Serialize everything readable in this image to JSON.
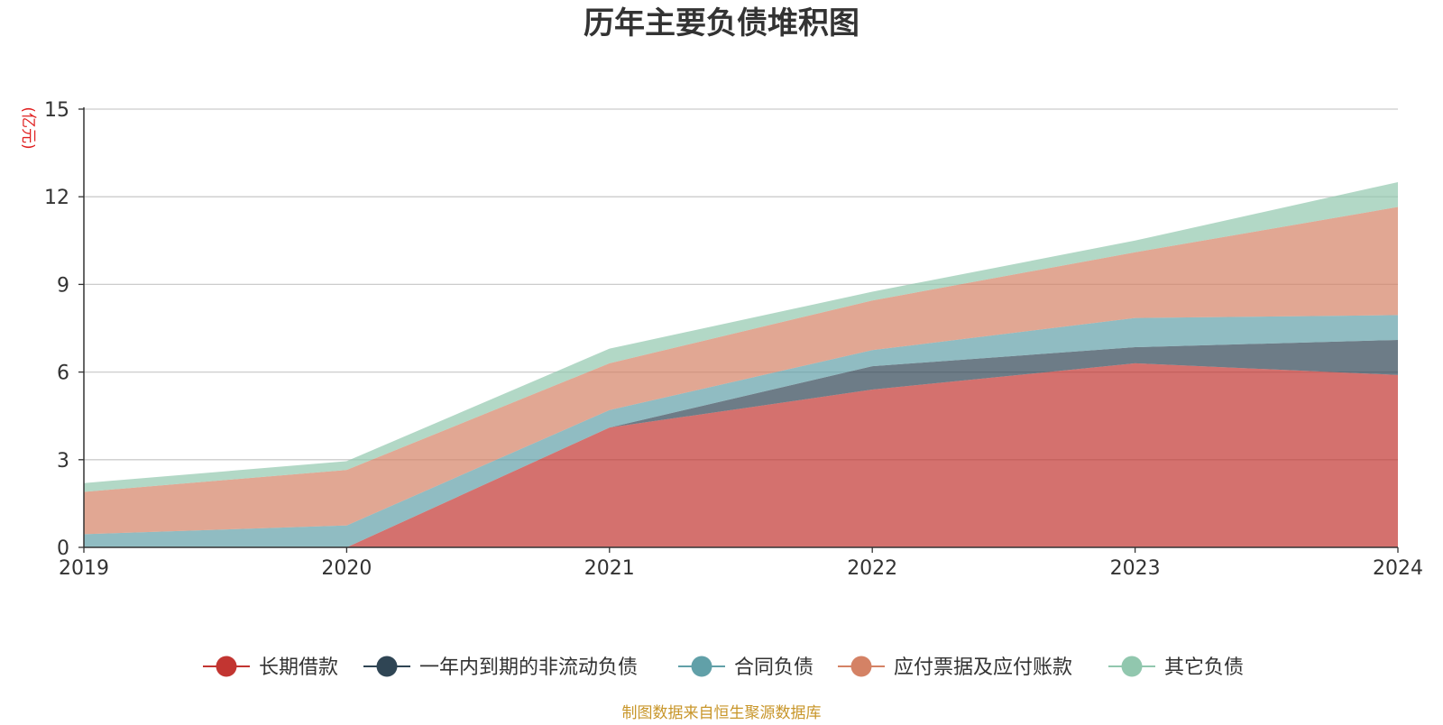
{
  "chart_data": {
    "type": "area",
    "stacked": true,
    "title": "历年主要负债堆积图",
    "unit_label": "(亿元)",
    "x": [
      "2019",
      "2020",
      "2021",
      "2022",
      "2023",
      "2024"
    ],
    "ylim": [
      0,
      15
    ],
    "yticks": [
      "0",
      "3",
      "6",
      "9",
      "12",
      "15"
    ],
    "grid": true,
    "legend_position": "bottom",
    "series": [
      {
        "name": "长期借款",
        "color": "#c23531",
        "values": [
          0,
          0,
          4.1,
          5.4,
          6.3,
          5.9
        ]
      },
      {
        "name": "一年内到期的非流动负债",
        "color": "#2f4554",
        "values": [
          0,
          0,
          0,
          0.8,
          0.55,
          1.2
        ]
      },
      {
        "name": "合同负债",
        "color": "#61a0a8",
        "values": [
          0.45,
          0.75,
          0.6,
          0.55,
          1.0,
          0.85
        ]
      },
      {
        "name": "应付票据及应付账款",
        "color": "#d48265",
        "values": [
          1.45,
          1.9,
          1.6,
          1.7,
          2.25,
          3.7
        ]
      },
      {
        "name": "其它负债",
        "color": "#91c7ae",
        "values": [
          0.3,
          0.3,
          0.5,
          0.3,
          0.4,
          0.85
        ]
      }
    ]
  },
  "source_note": "制图数据来自恒生聚源数据库"
}
